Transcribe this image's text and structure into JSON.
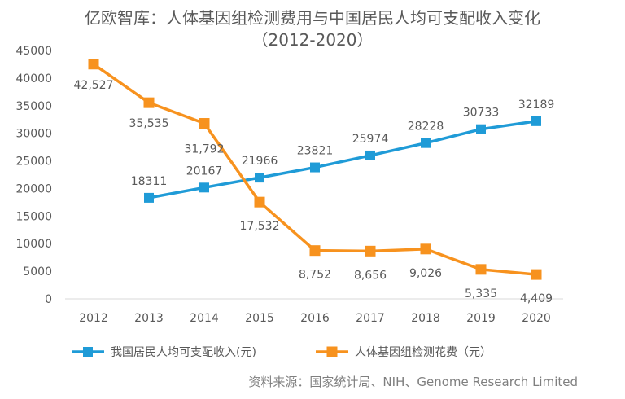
{
  "chart_data": {
    "type": "line",
    "title": "亿欧智库：人体基因组检测费用与中国居民人均可支配收入变化",
    "subtitle": "（2012-2020）",
    "x": [
      "2012",
      "2013",
      "2014",
      "2015",
      "2016",
      "2017",
      "2018",
      "2019",
      "2020"
    ],
    "ylim": [
      0,
      45000
    ],
    "yticks": [
      0,
      5000,
      10000,
      15000,
      20000,
      25000,
      30000,
      35000,
      40000,
      45000
    ],
    "grid": false,
    "legend_position": "bottom",
    "series": [
      {
        "name": "我国居民人均可支配收入(元)",
        "color": "#1F9BD7",
        "values": [
          null,
          18311,
          20167,
          21966,
          23821,
          25974,
          28228,
          30733,
          32189
        ],
        "labels": [
          "",
          "18311",
          "20167",
          "21966",
          "23821",
          "25974",
          "28228",
          "30733",
          "32189"
        ]
      },
      {
        "name": "人体基因组检测花费（元）",
        "color": "#F7921E",
        "values": [
          42527,
          35535,
          31792,
          17532,
          8752,
          8656,
          9026,
          5335,
          4409
        ],
        "labels": [
          "42,527",
          "35,535",
          "31,792",
          "17,532",
          "8,752",
          "8,656",
          "9,026",
          "5,335",
          "4,409"
        ]
      }
    ]
  },
  "source": "资料来源：国家统计局、NIH、Genome Research Limited"
}
